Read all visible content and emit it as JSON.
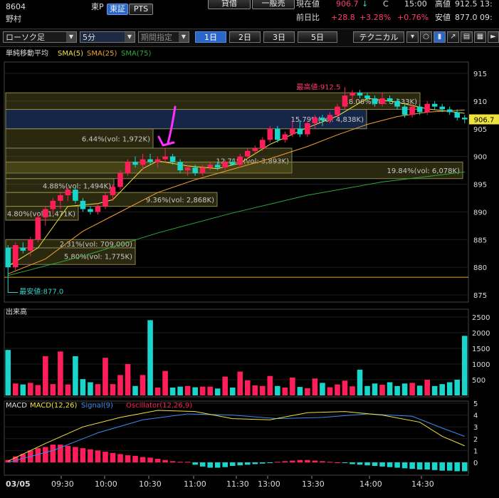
{
  "header": {
    "code": "8604",
    "name": "野村",
    "market_small": "東P",
    "tab_tse": "東証",
    "tab_pts": "PTS",
    "btn_margin": "貸借",
    "btn_general": "一般売",
    "lbl_current": "現在値",
    "current_value": "906.7",
    "current_arrow": "↓",
    "current_flag": "C",
    "current_time": "15:00",
    "lbl_high": "高値",
    "high_value": "912.5 13:",
    "lbl_change": "前日比",
    "change_value": "+28.8",
    "change_pct": "+3.28%",
    "change_pct2": "+0.76%",
    "lbl_low": "安値",
    "low_value": "877.0 09:"
  },
  "toolbar": {
    "chart_type": "ローソク足",
    "interval": "5分",
    "period_spec": "期間指定",
    "periods": [
      "1日",
      "2日",
      "3日",
      "5日"
    ],
    "technical": "テクニカル"
  },
  "colors": {
    "up": "#ff1e5a",
    "down": "#19d6cc",
    "sma5": "#f0e23c",
    "sma25": "#f0a030",
    "sma75": "#2fa83a",
    "macd": "#f0e23c",
    "signal": "#3a8cf0",
    "osc": "#ff1e5a",
    "annotation": "#ff30ff"
  },
  "chart_data": [
    {
      "type": "candlestick",
      "title": "単純移動平均",
      "legend": [
        "SMA(5)",
        "SMA(25)",
        "SMA(75)"
      ],
      "ylim": [
        874,
        917
      ],
      "yticks": [
        875,
        880,
        885,
        890,
        895,
        900,
        905,
        910,
        915
      ],
      "xticks": [
        "03/05",
        "09:30",
        "10:00",
        "10:30",
        "11:00",
        "11:30",
        "13:00",
        "13:30",
        "14:00",
        "14:30"
      ],
      "last_price_label": "906.7",
      "baseline": 878.2,
      "candles": [
        [
          883.5,
          884.0,
          877.0,
          880.0
        ],
        [
          880.0,
          884.5,
          879.5,
          884.0
        ],
        [
          883.5,
          884.5,
          882.5,
          883.0
        ],
        [
          883.0,
          885.5,
          882.0,
          885.0
        ],
        [
          885.0,
          889.5,
          884.5,
          889.0
        ],
        [
          889.0,
          891.0,
          887.5,
          890.5
        ],
        [
          890.5,
          892.5,
          889.5,
          892.0
        ],
        [
          892.0,
          893.5,
          890.5,
          893.0
        ],
        [
          893.0,
          894.5,
          892.0,
          894.0
        ],
        [
          894.0,
          894.5,
          891.5,
          892.0
        ],
        [
          892.0,
          892.5,
          890.0,
          890.5
        ],
        [
          890.5,
          891.0,
          889.5,
          890.0
        ],
        [
          890.0,
          891.5,
          889.5,
          891.0
        ],
        [
          891.0,
          893.5,
          890.5,
          893.0
        ],
        [
          893.0,
          895.0,
          892.0,
          894.5
        ],
        [
          894.5,
          897.5,
          894.0,
          897.0
        ],
        [
          897.0,
          899.5,
          896.5,
          899.0
        ],
        [
          899.0,
          900.0,
          898.0,
          898.5
        ],
        [
          898.5,
          900.5,
          897.5,
          899.5
        ],
        [
          899.5,
          900.5,
          898.5,
          899.0
        ],
        [
          899.0,
          900.0,
          898.0,
          899.5
        ],
        [
          899.5,
          901.5,
          899.0,
          900.0
        ],
        [
          900.0,
          900.5,
          898.5,
          899.0
        ],
        [
          899.0,
          899.5,
          897.0,
          897.5
        ],
        [
          897.5,
          898.5,
          896.5,
          898.0
        ],
        [
          898.0,
          898.5,
          896.5,
          897.0
        ],
        [
          897.0,
          898.5,
          896.5,
          898.0
        ],
        [
          898.0,
          899.0,
          897.5,
          898.5
        ],
        [
          898.5,
          899.0,
          897.5,
          898.0
        ],
        [
          898.0,
          899.5,
          897.5,
          899.0
        ],
        [
          899.0,
          899.5,
          898.5,
          898.5
        ],
        [
          898.5,
          900.5,
          898.0,
          900.0
        ],
        [
          900.0,
          901.5,
          899.5,
          901.0
        ],
        [
          901.0,
          902.0,
          900.5,
          901.5
        ],
        [
          901.5,
          903.5,
          901.0,
          903.0
        ],
        [
          903.0,
          905.5,
          902.5,
          905.0
        ],
        [
          905.0,
          905.5,
          902.5,
          903.0
        ],
        [
          903.0,
          904.5,
          902.5,
          904.0
        ],
        [
          904.0,
          906.5,
          903.5,
          905.0
        ],
        [
          905.0,
          906.5,
          903.5,
          904.0
        ],
        [
          904.0,
          906.5,
          903.5,
          906.0
        ],
        [
          906.0,
          907.5,
          905.0,
          907.0
        ],
        [
          907.0,
          907.5,
          905.5,
          906.5
        ],
        [
          906.5,
          908.0,
          906.0,
          907.5
        ],
        [
          907.5,
          909.5,
          907.0,
          909.0
        ],
        [
          909.0,
          912.5,
          908.5,
          911.0
        ],
        [
          911.0,
          912.0,
          910.0,
          911.5
        ],
        [
          911.5,
          912.0,
          910.5,
          911.0
        ],
        [
          911.0,
          911.5,
          910.0,
          910.5
        ],
        [
          910.5,
          911.0,
          909.0,
          909.5
        ],
        [
          909.5,
          911.5,
          909.0,
          910.5
        ],
        [
          910.5,
          911.0,
          909.5,
          910.0
        ],
        [
          910.0,
          910.5,
          908.5,
          909.0
        ],
        [
          909.0,
          909.5,
          907.0,
          907.5
        ],
        [
          907.5,
          909.5,
          907.0,
          909.0
        ],
        [
          909.0,
          909.5,
          907.5,
          908.0
        ],
        [
          908.0,
          910.0,
          907.5,
          909.5
        ],
        [
          909.5,
          910.0,
          908.5,
          909.0
        ],
        [
          909.0,
          909.5,
          908.0,
          908.5
        ],
        [
          908.5,
          909.0,
          907.5,
          908.0
        ],
        [
          908.0,
          908.5,
          906.5,
          907.0
        ],
        [
          907.0,
          907.5,
          906.0,
          906.7
        ]
      ],
      "sma5": [
        [
          0,
          880.2
        ],
        [
          4,
          883.5
        ],
        [
          8,
          891.0
        ],
        [
          12,
          891.5
        ],
        [
          14,
          892.2
        ],
        [
          18,
          897.8
        ],
        [
          20,
          899.2
        ],
        [
          24,
          898.3
        ],
        [
          28,
          897.8
        ],
        [
          31,
          898.8
        ],
        [
          35,
          902.2
        ],
        [
          40,
          905.2
        ],
        [
          44,
          907.3
        ],
        [
          48,
          910.5
        ],
        [
          52,
          909.8
        ],
        [
          56,
          908.6
        ],
        [
          61,
          907.8
        ]
      ],
      "sma25": [
        [
          0,
          878.8
        ],
        [
          5,
          881.5
        ],
        [
          10,
          886.5
        ],
        [
          15,
          890.0
        ],
        [
          20,
          893.5
        ],
        [
          25,
          895.8
        ],
        [
          30,
          897.7
        ],
        [
          35,
          899.6
        ],
        [
          40,
          901.8
        ],
        [
          44,
          903.9
        ],
        [
          48,
          905.8
        ],
        [
          52,
          907.2
        ],
        [
          56,
          908.0
        ],
        [
          61,
          908.4
        ]
      ],
      "sma75": [
        [
          0,
          878.5
        ],
        [
          10,
          882.0
        ],
        [
          20,
          886.2
        ],
        [
          30,
          889.8
        ],
        [
          40,
          893.0
        ],
        [
          50,
          895.4
        ],
        [
          61,
          897.2
        ]
      ],
      "price_bands": [
        {
          "label": "2.31%(vol: 709,000)",
          "lo": 883.5,
          "hi": 885.0
        },
        {
          "label": "5.80%(vol: 1,775K)",
          "lo": 880.5,
          "hi": 883.5
        },
        {
          "label": "4.80%(vol: 1,471K)",
          "lo": 888.5,
          "hi": 891.0
        },
        {
          "label": "4.88%(vol: 1,494K)",
          "lo": 893.5,
          "hi": 896.0
        },
        {
          "label": "9.36%(vol: 2,868K)",
          "lo": 891.0,
          "hi": 893.5
        },
        {
          "label": "6.44%(vol: 1,972K)",
          "lo": 901.5,
          "hi": 905.0
        },
        {
          "label": "12.71%(vol: 3,893K)",
          "lo": 897.0,
          "hi": 901.5
        },
        {
          "label": "19.84%(vol: 6,078K)",
          "lo": 896.0,
          "hi": 899.0
        },
        {
          "label": "15.79%(vol: 4,838K)",
          "lo": 905.0,
          "hi": 908.5
        },
        {
          "label": "18.06%(vol: 5,533K)",
          "lo": 908.5,
          "hi": 911.5
        }
      ],
      "annotations": {
        "high_label": "最高値:912.5",
        "low_label": "最安値:877.0"
      }
    },
    {
      "type": "bar",
      "title": "出来高",
      "ylim": [
        0,
        2800
      ],
      "yticks": [
        500,
        1000,
        1500,
        2000,
        2500
      ],
      "values": [
        1450,
        380,
        350,
        400,
        330,
        1250,
        360,
        1400,
        350,
        1250,
        520,
        420,
        360,
        1200,
        360,
        650,
        1000,
        300,
        650,
        2400,
        250,
        780,
        250,
        280,
        300,
        260,
        280,
        280,
        220,
        600,
        250,
        760,
        480,
        320,
        300,
        620,
        300,
        250,
        570,
        270,
        230,
        540,
        400,
        260,
        350,
        470,
        290,
        820,
        300,
        380,
        340,
        420,
        300,
        380,
        400,
        310,
        500,
        300,
        360,
        420,
        500,
        1900
      ]
    },
    {
      "type": "line",
      "title": "MACD",
      "legend": [
        "MACD(12,26)",
        "Signal(9)",
        "Oscillator(12,26,9)"
      ],
      "ylim": [
        -1,
        5
      ],
      "yticks": [
        0,
        1,
        2,
        3,
        4,
        5
      ],
      "macd": [
        [
          0,
          0.1
        ],
        [
          5,
          1.6
        ],
        [
          10,
          3.0
        ],
        [
          15,
          3.8
        ],
        [
          20,
          4.4
        ],
        [
          25,
          4.3
        ],
        [
          30,
          3.7
        ],
        [
          35,
          3.6
        ],
        [
          40,
          4.2
        ],
        [
          45,
          4.3
        ],
        [
          50,
          4.0
        ],
        [
          55,
          3.4
        ],
        [
          58,
          2.2
        ],
        [
          61,
          1.4
        ]
      ],
      "signal": [
        [
          0,
          0.0
        ],
        [
          6,
          1.0
        ],
        [
          12,
          2.5
        ],
        [
          18,
          3.6
        ],
        [
          24,
          4.1
        ],
        [
          30,
          4.0
        ],
        [
          36,
          3.7
        ],
        [
          42,
          3.8
        ],
        [
          48,
          4.1
        ],
        [
          54,
          3.9
        ],
        [
          58,
          2.9
        ],
        [
          61,
          2.2
        ]
      ],
      "oscillator": [
        0.2,
        0.5,
        0.7,
        1.0,
        1.2,
        1.3,
        1.5,
        1.5,
        1.4,
        1.3,
        1.2,
        1.1,
        1.0,
        0.9,
        0.8,
        0.7,
        0.6,
        0.55,
        0.45,
        0.4,
        0.3,
        0.2,
        0.1,
        0.05,
        0.05,
        -0.2,
        -0.35,
        -0.45,
        -0.45,
        -0.4,
        -0.3,
        -0.25,
        -0.2,
        -0.15,
        -0.1,
        -0.05,
        0.05,
        0.1,
        0.15,
        0.2,
        0.2,
        0.15,
        0.1,
        0.05,
        0.0,
        -0.05,
        -0.15,
        -0.2,
        -0.25,
        -0.3,
        -0.35,
        -0.4,
        -0.45,
        -0.5,
        -0.55,
        -0.6,
        -0.6,
        -0.65,
        -0.7,
        -0.7,
        -0.75,
        -0.75
      ]
    }
  ]
}
